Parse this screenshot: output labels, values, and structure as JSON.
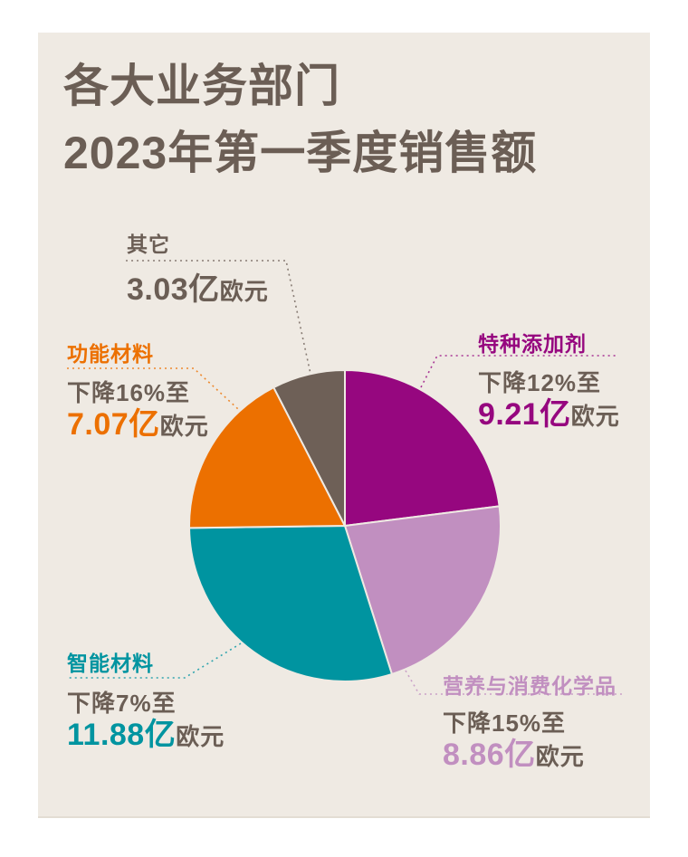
{
  "title": {
    "line1": "各大业务部门",
    "line2": "2023年第一季度销售额"
  },
  "colors": {
    "page_bg": "#ffffff",
    "panel_bg": "#efeae3",
    "text": "#6b5e55"
  },
  "chart_data": {
    "type": "pie",
    "title": "各大业务部门 2023年第一季度销售额",
    "unit": "亿欧元",
    "start_angle_deg": 0,
    "direction": "clockwise",
    "legend_position": "outside-callouts",
    "segments": [
      {
        "key": "specialty-additives",
        "label": "特种添加剂",
        "value": 9.21,
        "change_text": "下降12%至",
        "value_display": "9.21亿",
        "unit_display": "欧元",
        "color": "#96077f",
        "accent": "#96077f"
      },
      {
        "key": "nutrition-consumer-chemicals",
        "label": "营养与消费化学品",
        "value": 8.86,
        "change_text": "下降15%至",
        "value_display": "8.86亿",
        "unit_display": "欧元",
        "color": "#c18fc0",
        "accent": "#c18fc0"
      },
      {
        "key": "smart-materials",
        "label": "智能材料",
        "value": 11.88,
        "change_text": "下降7%至",
        "value_display": "11.88亿",
        "unit_display": "欧元",
        "color": "#0094a0",
        "accent": "#0094a0"
      },
      {
        "key": "functional-materials",
        "label": "功能材料",
        "value": 7.07,
        "change_text": "下降16%至",
        "value_display": "7.07亿",
        "unit_display": "欧元",
        "color": "#ec7000",
        "accent": "#ec7000"
      },
      {
        "key": "other",
        "label": "其它",
        "value": 3.03,
        "change_text": "",
        "value_display": "3.03亿",
        "unit_display": "欧元",
        "color": "#6e6057",
        "accent": "#6b5e55"
      }
    ]
  }
}
